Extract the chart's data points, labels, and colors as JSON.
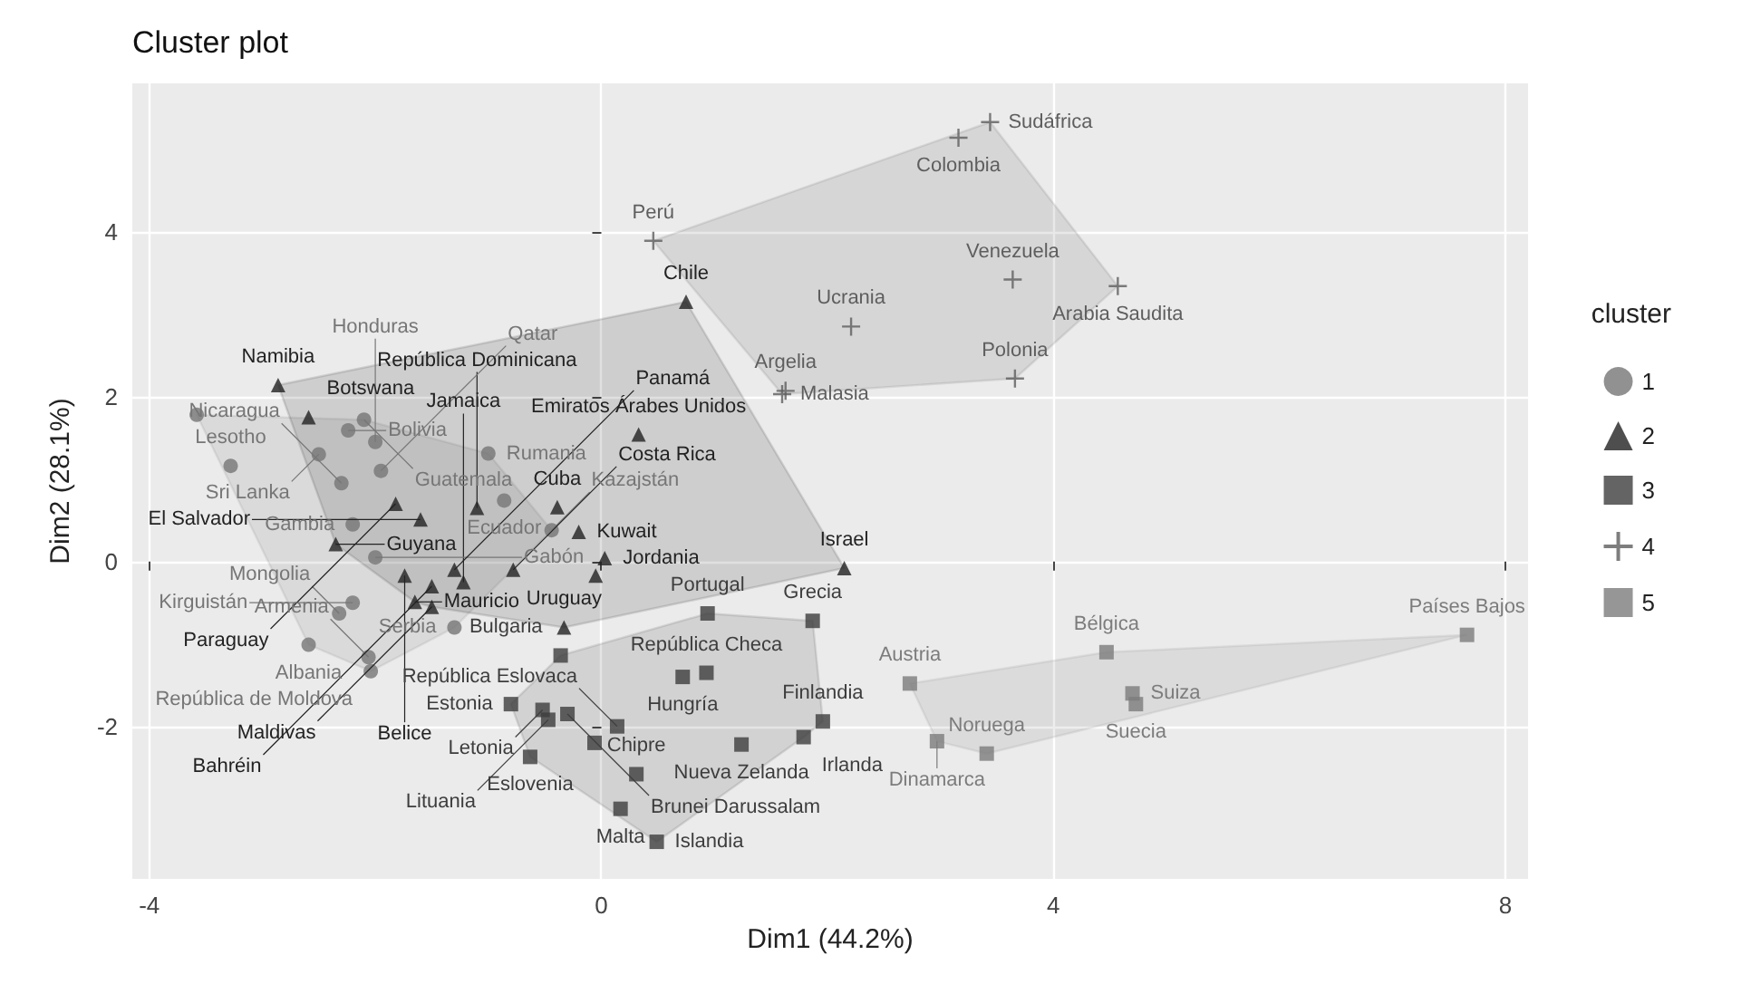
{
  "chart_data": {
    "type": "scatter",
    "title": "Cluster plot",
    "xlabel": "Dim1 (44.2%)",
    "ylabel": "Dim2 (28.1%)",
    "legend_title": "cluster",
    "legend": "right",
    "grid": true,
    "xlim": [
      -4.15,
      8.2
    ],
    "ylim": [
      -3.85,
      5.8
    ],
    "xticks": [
      -4,
      0,
      4,
      8
    ],
    "yticks": [
      -2,
      0,
      2,
      4
    ],
    "series": [
      {
        "name": "1",
        "color": "#767676",
        "marker": "circle",
        "x": [
          -3.58,
          -3.28,
          -2.24,
          -2.1,
          -2.0,
          -2.5,
          -1.95,
          -2.3,
          -1.0,
          -0.86,
          -2.2,
          -2.0,
          -0.44,
          -2.32,
          -2.2,
          -1.3,
          -2.59,
          -2.06,
          -2.04
        ],
        "values": [
          1.78,
          1.16,
          1.59,
          1.72,
          1.45,
          1.3,
          1.1,
          0.95,
          1.31,
          0.74,
          0.45,
          0.05,
          0.38,
          -0.63,
          -0.5,
          -0.8,
          -1.01,
          -1.16,
          -1.33
        ],
        "value_labels": [
          null,
          "Lesotho",
          "Bolivia",
          "Guatemala",
          "Honduras",
          "Sri Lanka",
          "Qatar",
          "Nicaragua",
          "Rumania",
          "Ecuador",
          "Gambia",
          "Gabón",
          "Kazajstán",
          "Mongolia",
          "Kirguistán",
          "Serbia",
          "Albania",
          "Armenia",
          "República de Moldova"
        ]
      },
      {
        "name": "2",
        "color": "#222222",
        "marker": "triangle",
        "x": [
          -2.86,
          -2.59,
          0.75,
          2.15,
          0.33,
          -0.39,
          -0.2,
          0.03,
          -0.05,
          -1.82,
          -1.6,
          -1.1,
          -0.78,
          -1.22,
          -1.74,
          -1.3,
          -1.5,
          -1.65,
          -1.5,
          -2.35,
          -0.33
        ],
        "values": [
          2.14,
          1.75,
          3.15,
          -0.08,
          1.54,
          0.66,
          0.36,
          0.04,
          -0.17,
          0.7,
          0.51,
          0.65,
          -0.1,
          -0.25,
          -0.17,
          -0.1,
          -0.3,
          -0.49,
          -0.55,
          0.21,
          -0.8
        ],
        "value_labels": [
          "Namibia",
          "Botswana",
          "Chile",
          "Israel",
          "Emiratos Árabes Unidos",
          "Cuba",
          "Kuwait",
          "Jordania",
          null,
          "Paraguay",
          "El Salvador",
          "República Dominicana",
          "Costa Rica",
          "Jamaica",
          "Belice",
          "Panamá",
          "Bahréin",
          "Mauricio",
          "Maldivas",
          "Guyana",
          "Uruguay"
        ]
      },
      {
        "name": "3",
        "color": "#3d3d3d",
        "marker": "square",
        "x": [
          0.94,
          1.87,
          0.93,
          0.72,
          -0.36,
          -0.8,
          -0.52,
          -0.47,
          -0.3,
          0.14,
          -0.06,
          -0.63,
          0.31,
          0.17,
          0.49,
          1.96,
          1.79,
          1.24
        ],
        "values": [
          -0.63,
          -0.72,
          -1.35,
          -1.4,
          -1.14,
          -1.73,
          -1.8,
          -1.92,
          -1.85,
          -2.0,
          -2.2,
          -2.37,
          -2.58,
          -3.0,
          -3.4,
          -1.94,
          -2.13,
          -2.22
        ],
        "value_labels": [
          "Portugal",
          "Grecia",
          "República Checa",
          "Hungría",
          "Bulgaria",
          "Estonia",
          "Letonia",
          "Lituania",
          "Brunei Darussalam",
          "República Eslovaca",
          null,
          "Eslovenia",
          "Chipre",
          "Malta",
          "Islandia",
          "Finlandia",
          "Irlanda",
          "Nueva Zelanda"
        ]
      },
      {
        "name": "4",
        "color": "#5e5e5e",
        "marker": "cross",
        "x": [
          0.46,
          3.44,
          3.16,
          3.64,
          4.57,
          2.21,
          3.66,
          1.63,
          1.6
        ],
        "values": [
          3.89,
          5.33,
          5.14,
          3.42,
          3.34,
          2.85,
          2.22,
          2.07,
          2.03
        ],
        "value_labels": [
          "Perú",
          "Sudáfrica",
          "Colombia",
          "Venezuela",
          "Arabia Saudita",
          "Ucrania",
          "Polonia",
          "Argelia",
          "Malasia"
        ]
      },
      {
        "name": "5",
        "color": "#7c7c7c",
        "marker": "square",
        "x": [
          2.73,
          4.47,
          7.66,
          4.73,
          4.7,
          2.97,
          3.41
        ],
        "values": [
          -1.48,
          -1.1,
          -0.89,
          -1.73,
          -1.6,
          -2.18,
          -2.33
        ],
        "value_labels": [
          "Austria",
          "Bélgica",
          "Países Bajos",
          "Suecia",
          "Suiza",
          "Dinamarca",
          "Noruega"
        ]
      }
    ]
  }
}
